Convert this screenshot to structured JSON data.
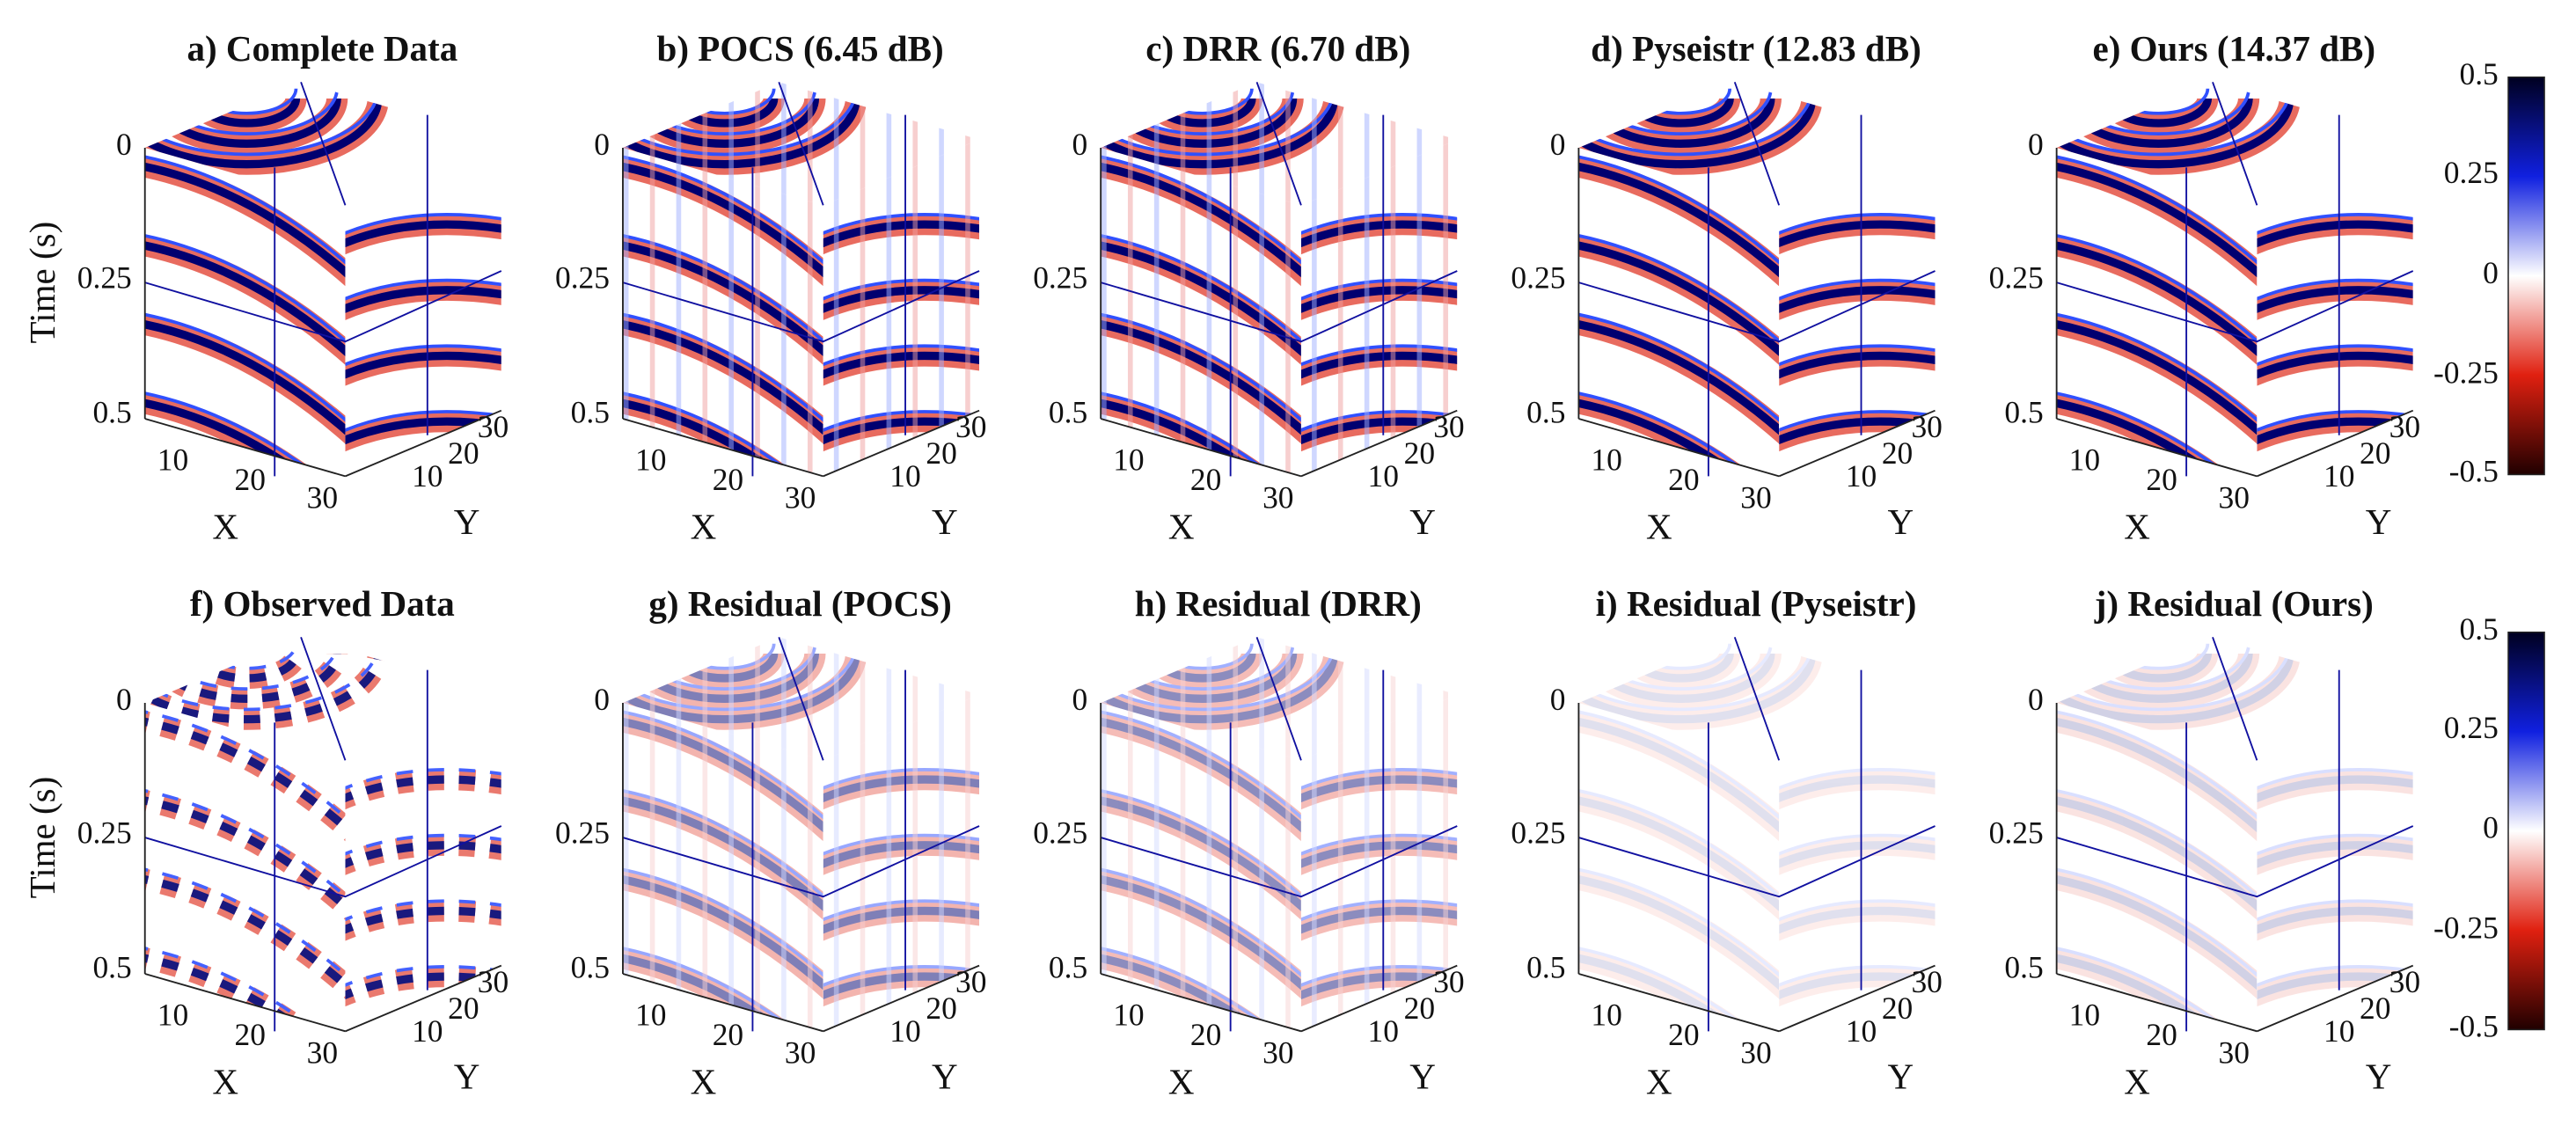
{
  "figure": {
    "panels": [
      {
        "title": "a) Complete Data"
      },
      {
        "title": "b) POCS (6.45 dB)"
      },
      {
        "title": "c) DRR (6.70 dB)"
      },
      {
        "title": "d) Pyseistr (12.83 dB)"
      },
      {
        "title": "e) Ours (14.37 dB)"
      },
      {
        "title": "f) Observed Data"
      },
      {
        "title": "g) Residual (POCS)"
      },
      {
        "title": "h) Residual (DRR)"
      },
      {
        "title": "i) Residual (Pyseistr)"
      },
      {
        "title": "j) Residual (Ours)"
      }
    ],
    "time_label": "Time (s)",
    "x_label": "X",
    "y_label": "Y",
    "time_ticks": [
      "0",
      "0.25",
      "0.5"
    ],
    "x_ticks": [
      "10",
      "20",
      "30"
    ],
    "y_ticks": [
      "10",
      "20",
      "30"
    ],
    "colorbar_ticks": [
      "0.5",
      "0.25",
      "0",
      "-0.25",
      "-0.5"
    ]
  }
}
